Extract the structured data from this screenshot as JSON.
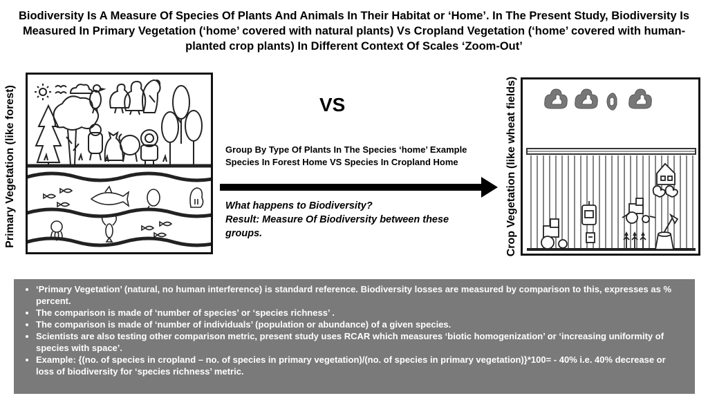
{
  "title": "Biodiversity Is A Measure Of Species Of Plants And Animals In Their Habitat or ‘Home’. In The Present Study, Biodiversity Is Measured In Primary Vegetation (‘home’ covered with natural plants) Vs Cropland Vegetation (‘home’ covered with human-planted crop plants) In Different Context Of Scales ‘Zoom-Out’",
  "left_label": "Primary Vegetation (like forest)",
  "right_label": "Crop Vegetation (like wheat fields)",
  "vs_label": "VS",
  "group_text": "Group By Type Of Plants In The Species ‘home’ Example Species In Forest Home VS Species In Cropland Home",
  "question": "What happens to Biodiversity?",
  "result": "Result: Measure Of Biodiversity between these groups.",
  "notes": [
    "‘Primary Vegetation’ (natural, no human interference) is standard reference. Biodiversity losses are measured by comparison to this, expresses as % percent.",
    "The comparison is made of ‘number of species’ or ‘species richness’ .",
    "The comparison is made of ‘number of individuals’ (population or abundance) of a given species.",
    "Scientists are also testing other comparison metric, present study uses RCAR which measures ‘biotic homogenization’ or ‘increasing uniformity of species with space’.",
    "Example: {(no. of species in cropland – no. of species in primary vegetation)/(no. of species in primary vegetation)}*100= - 40%  i.e. 40% decrease or loss of biodiversity for ‘species richness’ metric."
  ],
  "colors": {
    "notes_background": "#7a7a7a",
    "ink": "#111111"
  },
  "icons": {
    "left": [
      "sun-icon",
      "birds-icon",
      "cloud-icon",
      "bird-icon",
      "duck-icon",
      "parrot-icon",
      "tree-icon",
      "animal-icon",
      "river-icon",
      "fish-icon",
      "shark-icon",
      "octopus-icon",
      "lobster-icon",
      "walrus-icon"
    ],
    "right": [
      "cloud-icon",
      "barn-icon",
      "chicken-icon",
      "tractor-icon",
      "machine-icon",
      "crop-icon",
      "stump-axe-icon",
      "fence-icon"
    ]
  }
}
